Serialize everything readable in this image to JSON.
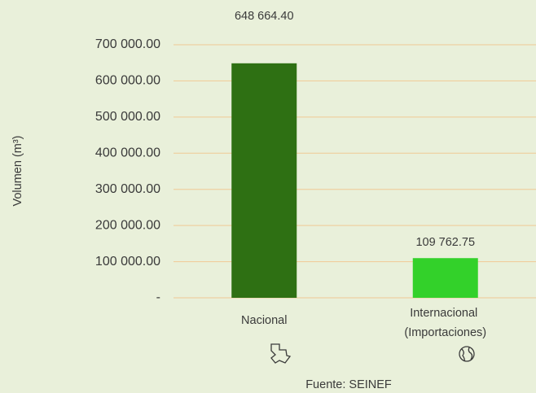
{
  "chart_data": {
    "type": "bar",
    "y_label": "Volumen (m³)",
    "source": "Fuente: SEINEF",
    "categories": [
      "Nacional",
      "Internacional (Importaciones)"
    ],
    "values": [
      648664.4,
      109762.75
    ],
    "value_labels": [
      "648 664.40",
      "109 762.75"
    ],
    "colors": [
      "#2e7013",
      "#33d12a"
    ],
    "ylim": [
      0,
      700000
    ],
    "yticks": [
      {
        "value": 0,
        "label": "-"
      },
      {
        "value": 100000,
        "label": "100 000.00"
      },
      {
        "value": 200000,
        "label": "200 000.00"
      },
      {
        "value": 300000,
        "label": "300 000.00"
      },
      {
        "value": 400000,
        "label": "400 000.00"
      },
      {
        "value": 500000,
        "label": "500 000.00"
      },
      {
        "value": 600000,
        "label": "600 000.00"
      },
      {
        "value": 700000,
        "label": "700 000.00"
      }
    ],
    "grid": true,
    "grid_color": "#f0c994"
  }
}
